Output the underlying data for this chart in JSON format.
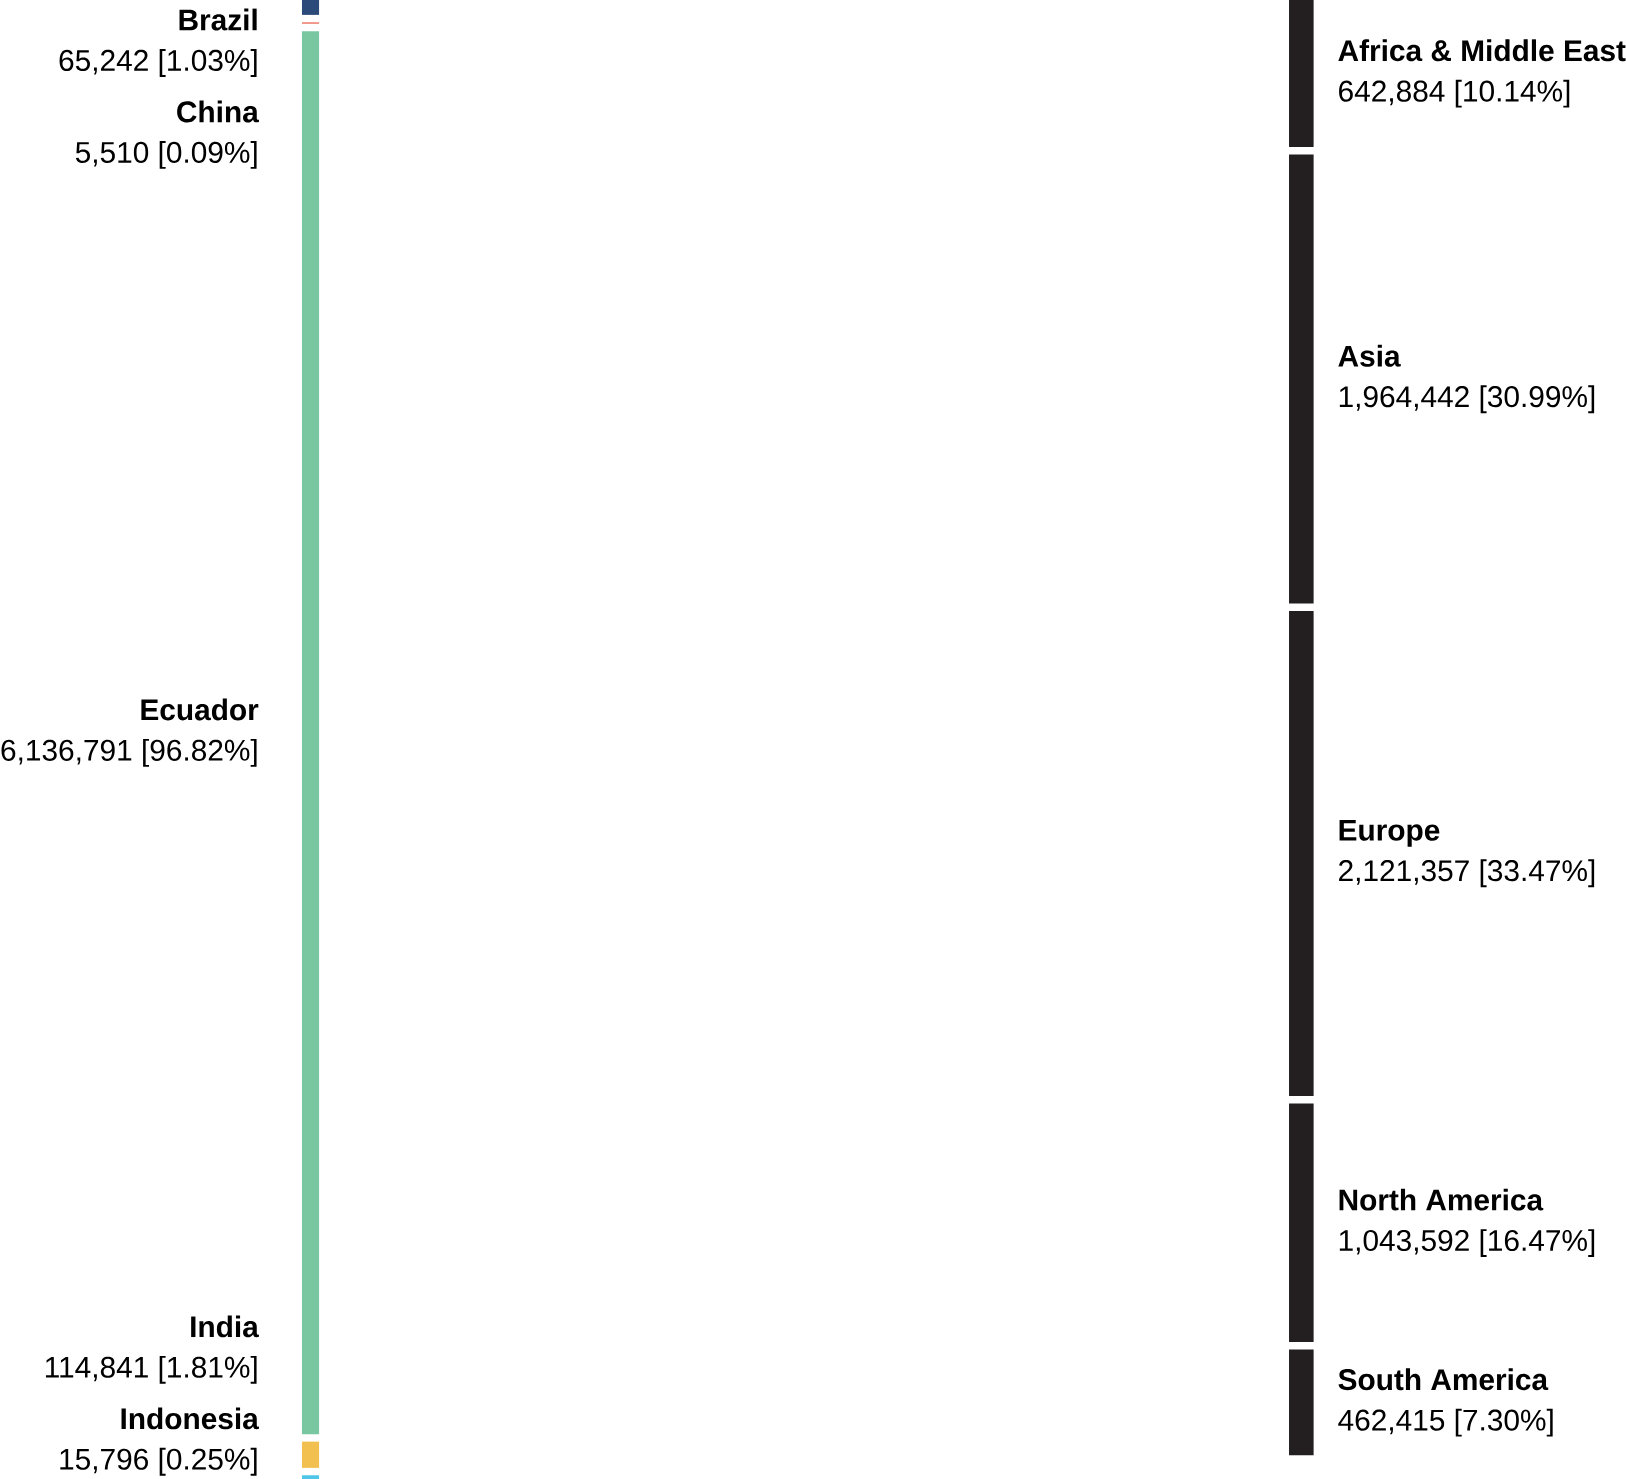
{
  "chart_data": {
    "type": "other",
    "categories": [
      "Brazil",
      "China",
      "Ecuador",
      "India",
      "Indonesia",
      "Africa & Middle East",
      "Asia",
      "Europe",
      "North America",
      "South America"
    ],
    "series": [
      {
        "values": [
          65242,
          5510,
          6136791,
          114841,
          15796,
          null,
          null,
          null,
          null,
          null
        ],
        "colors": [
          "#2b4a7a",
          "#e8604c",
          "#78c7a0",
          "#f2c04f",
          "#4fc6e8",
          null,
          null,
          null,
          null,
          null
        ],
        "value_labels": [
          "65,242 [1.03%]",
          "5,510 [0.09%]",
          "6,136,791 [96.82%]",
          "114,841 [1.81%]",
          "15,796 [0.25%]",
          null,
          null,
          null,
          null,
          null
        ]
      },
      {
        "values": [
          null,
          null,
          null,
          null,
          null,
          642884,
          1964442,
          2121357,
          1043592,
          462415
        ],
        "colors": [
          null,
          null,
          null,
          null,
          null,
          "#231f20",
          "#231f20",
          "#231f20",
          "#231f20",
          "#231f20"
        ],
        "value_labels": [
          null,
          null,
          null,
          null,
          null,
          "642,884 [10.14%]",
          "1,964,442 [30.99%]",
          "2,121,357 [33.47%]",
          "1,043,592 [16.47%]",
          "462,415 [7.30%]"
        ]
      }
    ]
  }
}
